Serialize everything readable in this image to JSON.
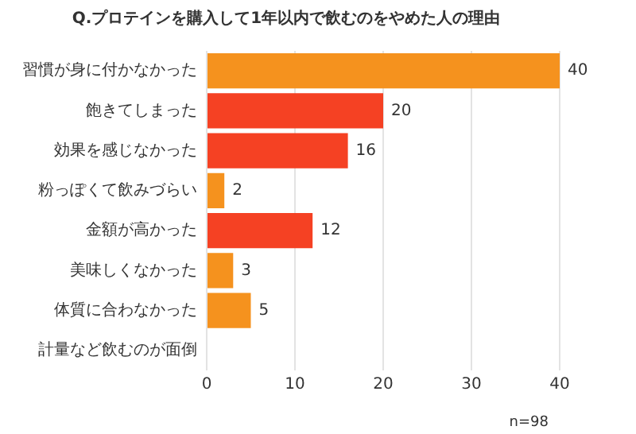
{
  "chart_data": {
    "type": "bar",
    "orientation": "horizontal",
    "title": "Q.プロテインを購入して1年以内で飲むのをやめた人の理由",
    "categories": [
      "習慣が身に付かなかった",
      "飽きてしまった",
      "効果を感じなかった",
      "粉っぽくて飲みづらい",
      "金額が高かった",
      "美味しくなかった",
      "体質に合わなかった",
      "計量など飲むのが面倒"
    ],
    "values": [
      40,
      20,
      16,
      2,
      12,
      3,
      5,
      null
    ],
    "colors": [
      "#f5921e",
      "#f54123",
      "#f54123",
      "#f5921e",
      "#f54123",
      "#f5921e",
      "#f5921e",
      "#f5921e"
    ],
    "xlim": [
      0,
      40
    ],
    "xticks": [
      0,
      10,
      20,
      30,
      40
    ],
    "grid": "x",
    "data_labels": true,
    "legend": false,
    "annotations": [
      "n=98"
    ]
  }
}
